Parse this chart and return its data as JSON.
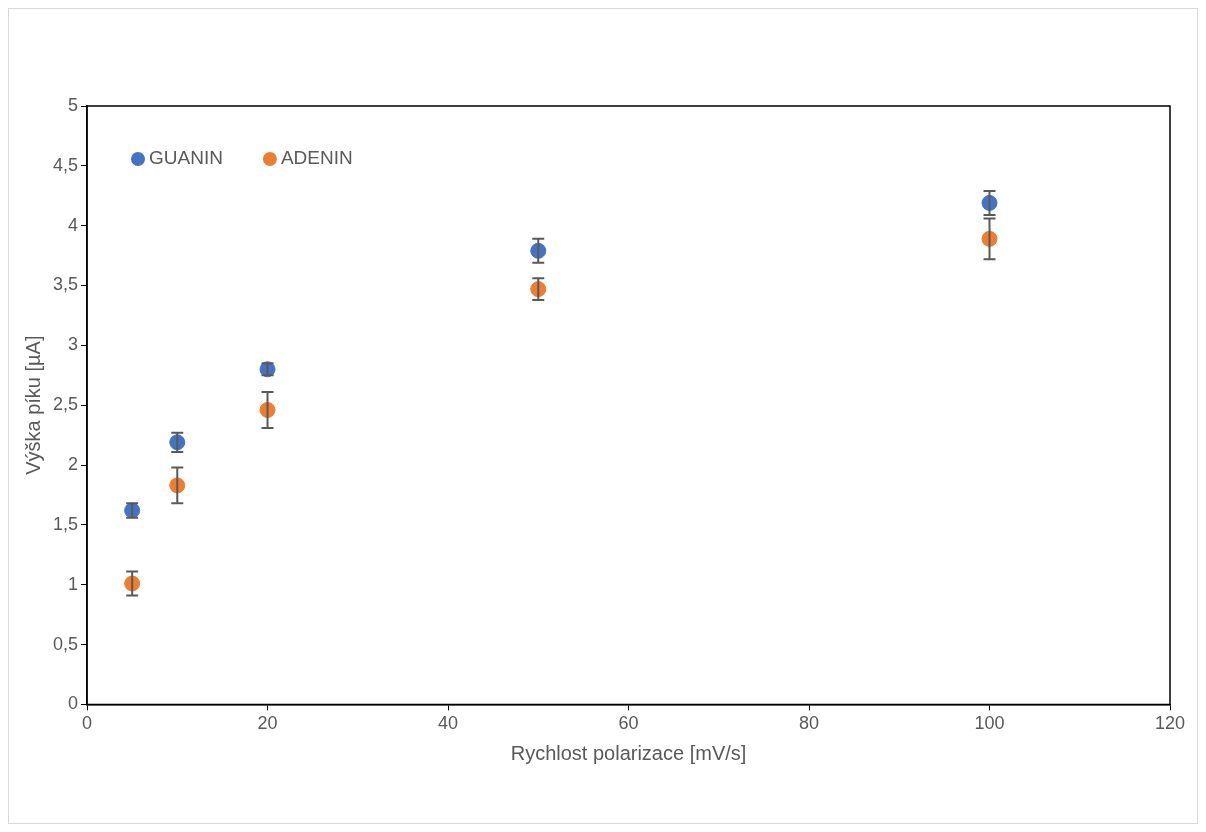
{
  "chart_data": {
    "type": "scatter",
    "xlabel": "Rychlost polarizace [mV/s]",
    "ylabel": "Výška píku [µA]",
    "x": [
      5,
      10,
      20,
      50,
      100
    ],
    "series": [
      {
        "name": "GUANIN",
        "color": "#4472c4",
        "values": [
          1.62,
          2.19,
          2.8,
          3.79,
          4.19
        ],
        "errors": [
          0.06,
          0.08,
          0.05,
          0.1,
          0.1
        ]
      },
      {
        "name": "ADENIN",
        "color": "#ed7d31",
        "values": [
          1.01,
          1.83,
          2.46,
          3.47,
          3.89
        ],
        "errors": [
          0.1,
          0.15,
          0.15,
          0.09,
          0.17
        ]
      }
    ],
    "xlim": [
      0,
      120
    ],
    "xticks": [
      0,
      20,
      40,
      60,
      80,
      100,
      120
    ],
    "ylim": [
      0,
      5
    ],
    "yticks": [
      0,
      {
        "value": 0.5,
        "label": "0,5"
      },
      1,
      {
        "value": 1.5,
        "label": "1,5"
      },
      2,
      {
        "value": 2.5,
        "label": "2,5"
      },
      3,
      {
        "value": 3.5,
        "label": "3,5"
      },
      4,
      {
        "value": 4.5,
        "label": "4,5"
      },
      5
    ],
    "grid": false,
    "legend": "top left",
    "marker": "circle"
  }
}
